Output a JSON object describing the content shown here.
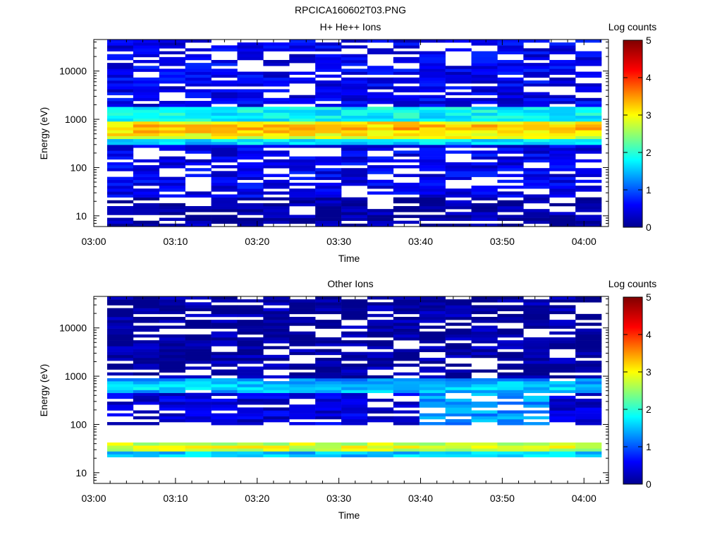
{
  "title": "RPCICA160602T03.PNG",
  "panels": [
    {
      "title": "H+ He++ Ions",
      "xlabel": "Time",
      "ylabel": "Energy (eV)",
      "colorbar_label": "Log counts"
    },
    {
      "title": "Other Ions",
      "xlabel": "Time",
      "ylabel": "Energy (eV)",
      "colorbar_label": "Log counts"
    }
  ],
  "chart_data": [
    {
      "type": "heatmap",
      "title": "H+ He++ Ions",
      "xlabel": "Time",
      "ylabel": "Energy (eV)",
      "x_ticks": [
        "03:00",
        "03:10",
        "03:20",
        "03:30",
        "03:40",
        "03:50",
        "04:00"
      ],
      "y_ticks": [
        "10",
        "100",
        "1000",
        "10000"
      ],
      "y_scale": "log",
      "ylim": [
        6,
        45000
      ],
      "xlim": [
        "03:00",
        "04:03"
      ],
      "time_bins": 19,
      "colorbar": {
        "label": "Log counts",
        "ticks": [
          "0",
          "1",
          "2",
          "3",
          "4",
          "5"
        ],
        "range": [
          0,
          5
        ]
      },
      "bands": [
        {
          "energy_eV": [
            400,
            950
          ],
          "log_counts": 3.4,
          "peak_energy_eV": 650
        },
        {
          "energy_eV": [
            950,
            1800
          ],
          "log_counts": 1.8
        },
        {
          "energy_eV": [
            300,
            400
          ],
          "log_counts": 1.6
        },
        {
          "energy_eV": [
            25,
            300
          ],
          "log_counts": 0.5
        },
        {
          "energy_eV": [
            1800,
            45000
          ],
          "log_counts": 0.5
        },
        {
          "energy_eV": [
            6,
            25
          ],
          "log_counts": 0.1
        }
      ]
    },
    {
      "type": "heatmap",
      "title": "Other Ions",
      "xlabel": "Time",
      "ylabel": "Energy (eV)",
      "x_ticks": [
        "03:00",
        "03:10",
        "03:20",
        "03:30",
        "03:40",
        "03:50",
        "04:00"
      ],
      "y_ticks": [
        "10",
        "100",
        "1000",
        "10000"
      ],
      "y_scale": "log",
      "ylim": [
        6,
        45000
      ],
      "xlim": [
        "03:00",
        "04:03"
      ],
      "time_bins": 19,
      "colorbar": {
        "label": "Log counts",
        "ticks": [
          "0",
          "1",
          "2",
          "3",
          "4",
          "5"
        ],
        "range": [
          0,
          5
        ]
      },
      "bands": [
        {
          "energy_eV": [
            28,
            42
          ],
          "log_counts": 2.9,
          "peak_energy_eV": 35
        },
        {
          "energy_eV": [
            22,
            28
          ],
          "log_counts": 1.5
        },
        {
          "energy_eV": [
            450,
            850
          ],
          "log_counts": 1.7,
          "peak_energy_eV": 600
        },
        {
          "energy_eV": [
            100,
            450
          ],
          "log_counts": 0.4
        },
        {
          "energy_eV": [
            850,
            45000
          ],
          "log_counts": 0.1
        }
      ]
    }
  ]
}
